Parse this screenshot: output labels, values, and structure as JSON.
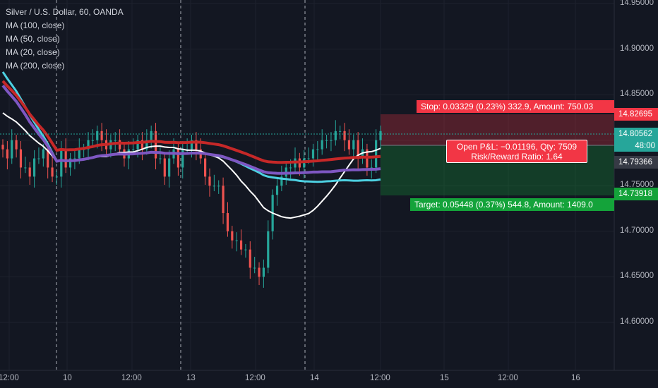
{
  "legend": {
    "symbol": "Silver / U.S. Dollar, 60, OANDA",
    "indicators": [
      "MA (100, close)",
      "MA (50, close)",
      "MA (20, close)",
      "MA (200, close)"
    ]
  },
  "trade": {
    "stop_label": "Stop: 0.03329 (0.23%) 332.9, Amount: 750.03",
    "target_label": "Target: 0.05448 (0.37%) 544.8, Amount: 1409.0",
    "pl_line1": "Open P&L: −0.01196, Qty: 7509",
    "pl_line2": "Risk/Reward Ratio: 1.64"
  },
  "price_tags": {
    "stop": "14.82695",
    "current": "14.80562",
    "countdown": "48:00",
    "entry": "14.79366",
    "target": "14.73918"
  },
  "y_axis": [
    "14.95000",
    "14.90000",
    "14.85000",
    "14.80000",
    "14.75000",
    "14.70000",
    "14.65000",
    "14.60000"
  ],
  "x_axis": [
    "12:00",
    "10",
    "12:00",
    "13",
    "12:00",
    "14",
    "12:00",
    "15",
    "12:00",
    "16"
  ],
  "colors": {
    "background": "#131722",
    "up": "#26a69a",
    "down": "#ef5350",
    "ma100": "#ffffff",
    "ma50": "#4dd0e1",
    "ma20": "#7e57c2",
    "ma200": "#c62828",
    "stop_zone": "#f23645",
    "target_zone": "#14a33a"
  },
  "chart_data": {
    "type": "candlestick",
    "y_range": [
      14.6,
      14.95
    ],
    "candles_close": [
      14.79,
      14.78,
      14.8,
      14.79,
      14.77,
      14.77,
      14.76,
      14.78,
      14.78,
      14.79,
      14.77,
      14.76,
      14.76,
      14.79,
      14.77,
      14.78,
      14.78,
      14.79,
      14.79,
      14.8,
      14.8,
      14.81,
      14.8,
      14.79,
      14.8,
      14.8,
      14.79,
      14.78,
      14.79,
      14.79,
      14.8,
      14.79,
      14.8,
      14.81,
      14.78,
      14.78,
      14.76,
      14.78,
      14.79,
      14.77,
      14.79,
      14.79,
      14.8,
      14.79,
      14.78,
      14.76,
      14.75,
      14.75,
      14.75,
      14.72,
      14.7,
      14.69,
      14.69,
      14.68,
      14.68,
      14.66,
      14.66,
      14.65,
      14.66,
      14.7,
      14.74,
      14.75,
      14.76,
      14.77,
      14.77,
      14.78,
      14.77,
      14.78,
      14.78,
      14.79,
      14.79,
      14.8,
      14.8,
      14.8,
      14.81,
      14.81,
      14.8,
      14.79,
      14.8,
      14.78,
      14.79,
      14.77,
      14.77,
      14.8,
      14.81
    ]
  }
}
